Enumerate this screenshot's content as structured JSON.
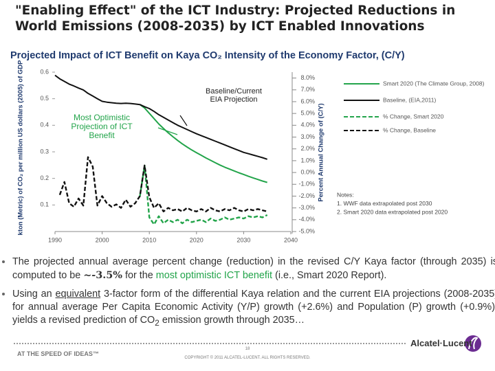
{
  "slide": {
    "title": "\"Enabling Effect\" of the ICT Industry: Projected Reductions in World Emissions (2008-2035) by ICT Enabled Innovations",
    "bullets": [
      [
        "The projected annual average percent change (reduction) in the revised C/Y Kaya factor (through 2035) is computed to be ",
        "~-3.5%",
        " for the ",
        "most optimistic ICT benefit",
        " (i.e., Smart 2020 Report)."
      ],
      [
        "Using an ",
        "equivalent",
        " 3-factor form of the differential Kaya relation and the current EIA projections (2008-2035) for annual average Per Capita Economic Activity (Y/P) growth (+2.6%) and Population (P) growth (+0.9%), yields a revised prediction of CO",
        "2",
        " emission growth through 2035…"
      ]
    ],
    "footer": {
      "tagline": "AT THE SPEED OF IDEAS™",
      "page": "18",
      "copyright": "COPYRIGHT © 2011 ALCATEL-LUCENT. ALL RIGHTS RESERVED.",
      "logo": "Alcatel·Lucent"
    }
  },
  "chart_data": {
    "type": "line",
    "title": "Projected Impact of ICT Benefit on Kaya CO₂ Intensity of the Economy Factor, (C/Y)",
    "ylabel": "kton (Metric) of CO₂ per million US dollars (2005) of GDP",
    "y2label": "Percent Annual Change of (C/Y)",
    "annotations": [
      "Baseline/Current EIA Projection",
      "Most Optimistic Projection of ICT Benefit"
    ],
    "notes": [
      "Notes:",
      "1.  WWF data extrapolated post 2030",
      "2.  Smart 2020 data extrapolated post 2020"
    ],
    "x": [
      1990,
      1991,
      1992,
      1993,
      1994,
      1995,
      1996,
      1997,
      1998,
      1999,
      2000,
      2001,
      2002,
      2003,
      2004,
      2005,
      2006,
      2007,
      2008,
      2009,
      2010,
      2011,
      2012,
      2013,
      2014,
      2015,
      2016,
      2017,
      2018,
      2019,
      2020,
      2021,
      2022,
      2023,
      2024,
      2025,
      2026,
      2027,
      2028,
      2029,
      2030,
      2031,
      2032,
      2033,
      2034,
      2035
    ],
    "xlim": [
      1990,
      2040
    ],
    "xticks": [
      1990,
      2000,
      2010,
      2020,
      2030,
      2040
    ],
    "ylim": [
      0,
      0.6
    ],
    "yticks": [
      0.1,
      0.2,
      0.3,
      0.4,
      0.5,
      0.6
    ],
    "y2lim": [
      -5,
      8.5
    ],
    "y2ticks": [
      {
        "value": 8,
        "label": "8.0%"
      },
      {
        "value": 7,
        "label": "7.0%"
      },
      {
        "value": 6,
        "label": "6.0%"
      },
      {
        "value": 5,
        "label": "5.0%"
      },
      {
        "value": 4,
        "label": "4.0%"
      },
      {
        "value": 3,
        "label": "3.0%"
      },
      {
        "value": 2,
        "label": "2.0%"
      },
      {
        "value": 1,
        "label": "1.0%"
      },
      {
        "value": 0,
        "label": "0.0%"
      },
      {
        "value": -1,
        "label": "-1.0%"
      },
      {
        "value": -2,
        "label": "-2.0%"
      },
      {
        "value": -3,
        "label": "-3.0%"
      },
      {
        "value": -4,
        "label": "-4.0%"
      },
      {
        "value": -5,
        "label": "-5.0%"
      }
    ],
    "series": [
      {
        "name": "Smart 2020 (The Climate Group, 2008)",
        "color": "#22a44a",
        "dashed": false,
        "values": [
          null,
          null,
          null,
          null,
          null,
          null,
          null,
          null,
          null,
          null,
          null,
          null,
          null,
          null,
          null,
          null,
          null,
          null,
          0.478,
          0.465,
          0.445,
          0.425,
          0.405,
          0.388,
          0.372,
          0.357,
          0.343,
          0.33,
          0.318,
          0.307,
          0.297,
          0.287,
          0.277,
          0.268,
          0.259,
          0.25,
          0.242,
          0.235,
          0.228,
          0.221,
          0.215,
          0.208,
          0.202,
          0.196,
          0.19,
          0.185
        ]
      },
      {
        "name": "Baseline, (EIA,2011)",
        "color": "#111111",
        "dashed": false,
        "values": [
          0.588,
          0.575,
          0.565,
          0.555,
          0.548,
          0.54,
          0.533,
          0.52,
          0.51,
          0.5,
          0.49,
          0.487,
          0.485,
          0.483,
          0.482,
          0.483,
          0.482,
          0.48,
          0.478,
          0.47,
          0.463,
          0.452,
          0.44,
          0.43,
          0.42,
          0.41,
          0.4,
          0.392,
          0.384,
          0.376,
          0.368,
          0.361,
          0.354,
          0.347,
          0.34,
          0.333,
          0.326,
          0.319,
          0.312,
          0.305,
          0.298,
          0.293,
          0.288,
          0.283,
          0.278,
          0.272
        ]
      },
      {
        "name": "% Change, Smart 2020",
        "color": "#22a44a",
        "dashed": true,
        "axis": "y2",
        "values": [
          null,
          null,
          null,
          null,
          null,
          null,
          null,
          null,
          null,
          null,
          null,
          null,
          null,
          null,
          null,
          null,
          null,
          null,
          -2.0,
          0.6,
          -3.8,
          -4.4,
          -3.7,
          -4.3,
          -4.0,
          -4.2,
          -4.0,
          -4.3,
          -4.0,
          -4.2,
          -4.1,
          -4.0,
          -4.2,
          -3.9,
          -4.1,
          -4.0,
          -3.8,
          -4.0,
          -3.9,
          -3.8,
          -3.9,
          -3.7,
          -3.8,
          -3.7,
          -3.8,
          -3.6
        ]
      },
      {
        "name": "% Change, Baseline",
        "color": "#111111",
        "dashed": true,
        "axis": "y2",
        "values": [
          null,
          -1.9,
          -0.8,
          -2.6,
          -2.9,
          -2.2,
          -2.8,
          1.3,
          0.5,
          -2.8,
          -2.0,
          -2.6,
          -2.9,
          -2.7,
          -3.0,
          -2.3,
          -2.9,
          -2.6,
          -2.0,
          0.6,
          -2.1,
          -3.0,
          -2.6,
          -3.3,
          -3.0,
          -3.2,
          -3.1,
          -3.3,
          -3.0,
          -3.2,
          -3.3,
          -3.1,
          -3.3,
          -3.0,
          -3.2,
          -3.3,
          -3.1,
          -3.2,
          -3.0,
          -3.2,
          -3.3,
          -3.1,
          -3.2,
          -3.1,
          -3.2,
          -3.3
        ]
      }
    ],
    "grid": false
  }
}
